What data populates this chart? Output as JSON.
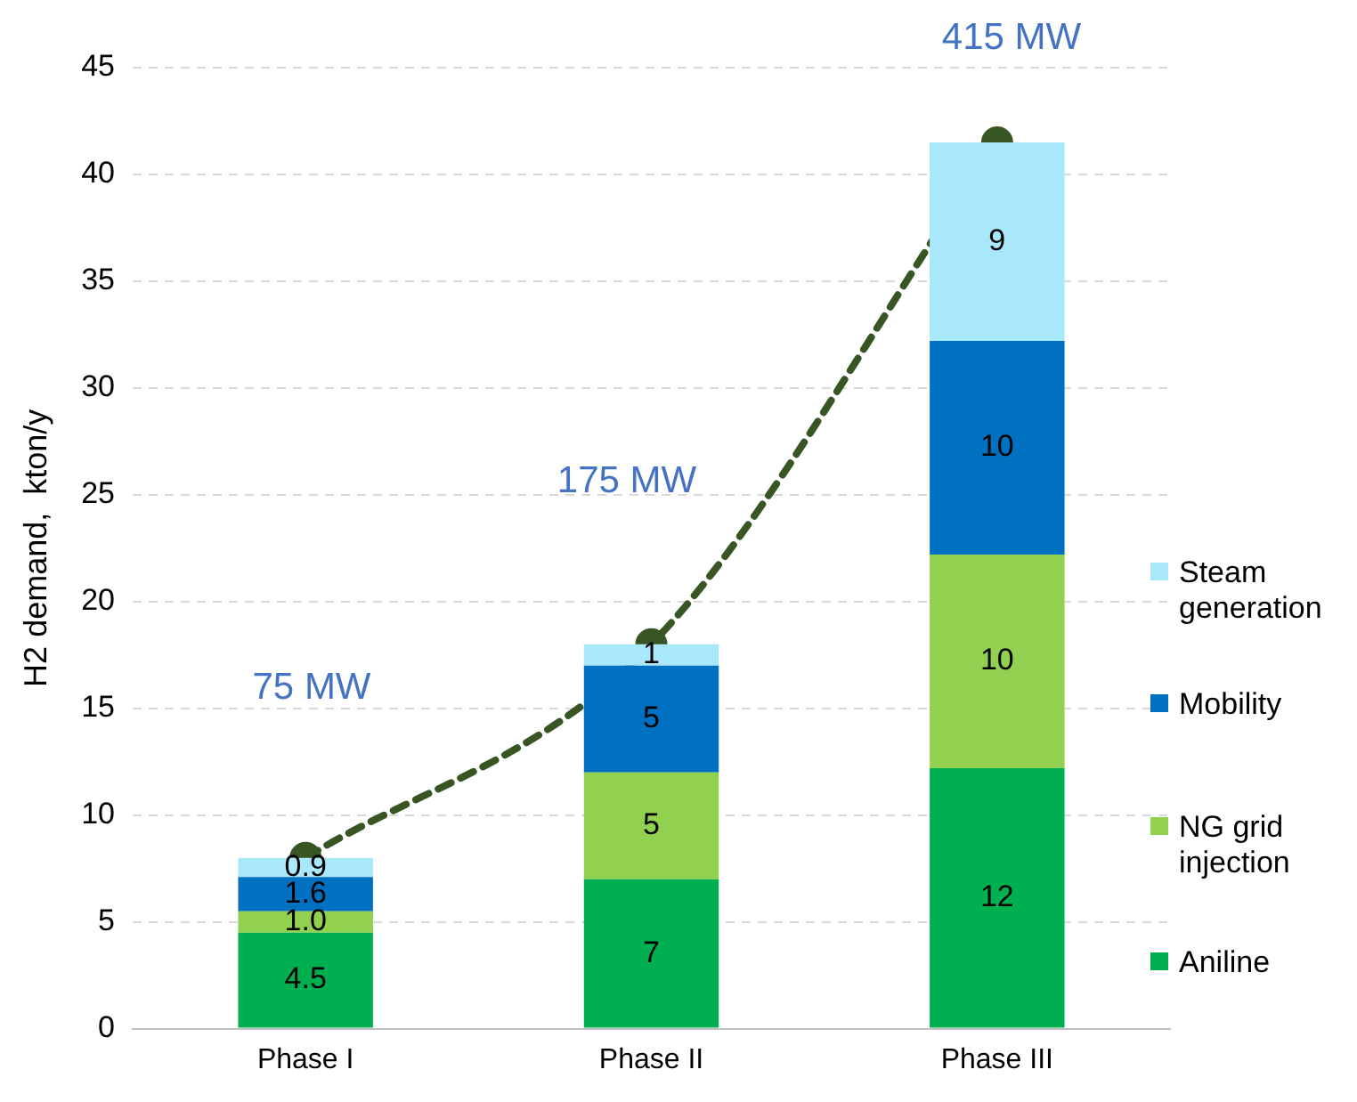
{
  "chart_data": {
    "type": "bar",
    "stacked": true,
    "ylabel": "H2 demand,  kton/y",
    "categories": [
      "Phase I",
      "Phase II",
      "Phase III"
    ],
    "ylim": [
      0,
      45
    ],
    "yticks": [
      0,
      5,
      10,
      15,
      20,
      25,
      30,
      35,
      40,
      45
    ],
    "grid": "y",
    "legend": "right",
    "series": [
      {
        "name": "Aniline",
        "color": "#00b050",
        "values": [
          4.5,
          7,
          12.2
        ],
        "value_labels": [
          "4.5",
          "7",
          "12"
        ]
      },
      {
        "name": "NG grid injection",
        "color": "#92d050",
        "values": [
          1.0,
          5,
          10
        ],
        "value_labels": [
          "1.0",
          "5",
          "10"
        ]
      },
      {
        "name": "Mobility",
        "color": "#0070c0",
        "values": [
          1.6,
          5,
          10
        ],
        "value_labels": [
          "1.6",
          "5",
          "10"
        ]
      },
      {
        "name": "Steam generation",
        "color": "#a9e8fb",
        "values": [
          0.9,
          1,
          9.3
        ],
        "value_labels": [
          "0.9",
          "1",
          "9"
        ]
      },
      {
        "type": "line",
        "color": "#375623",
        "values": [
          8,
          18,
          41.5
        ],
        "marker": "circle",
        "line_style": "dashed"
      }
    ],
    "annotations": [
      "75 MW",
      "175 MW",
      "415 MW"
    ]
  }
}
